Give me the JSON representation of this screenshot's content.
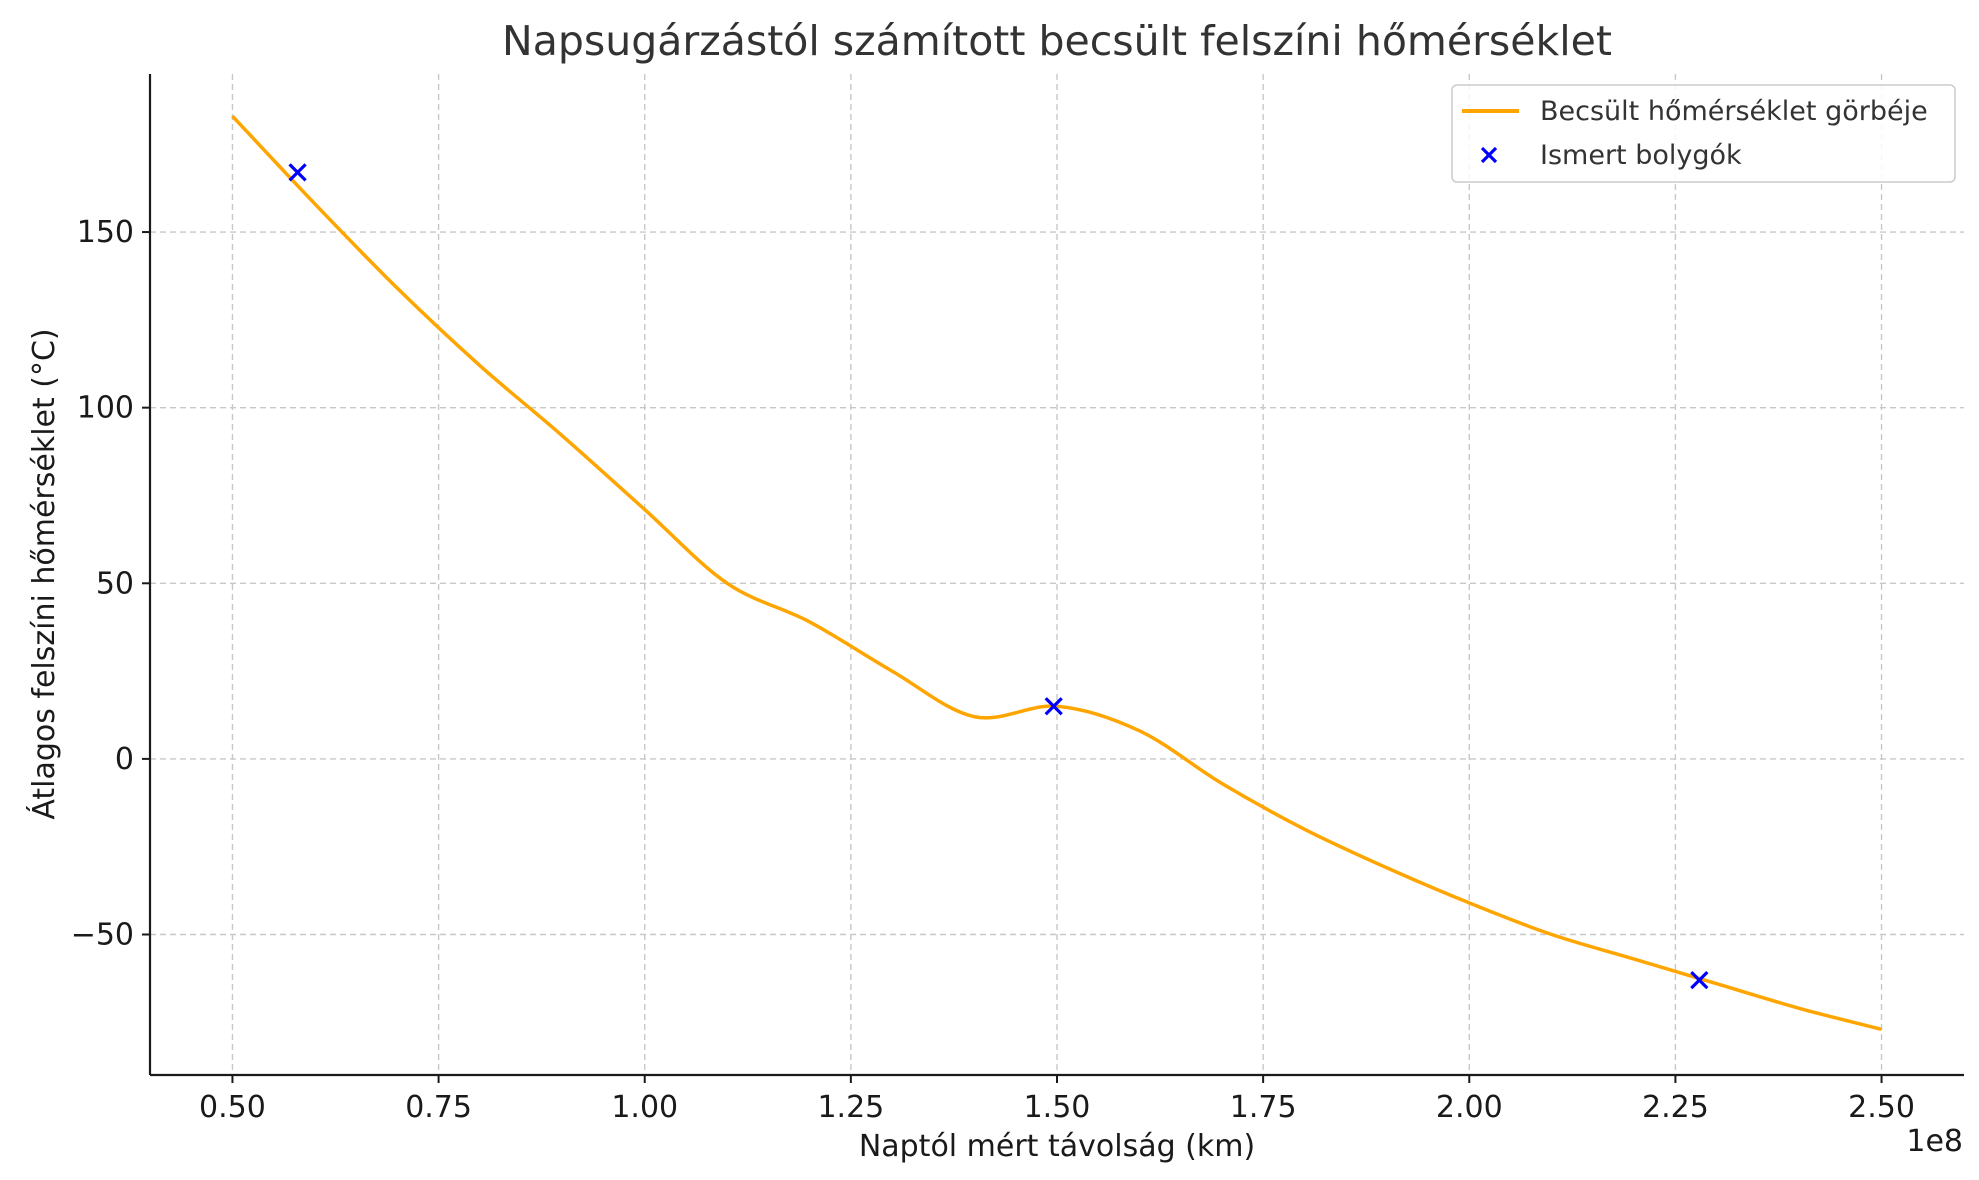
{
  "chart_data": {
    "type": "line",
    "title": "Napsugárzástól számított becsült felszíni hőmérséklet",
    "xlabel": "Naptól mért távolság (km)",
    "ylabel": "Átlagos felszíni hőmérséklet (°C)",
    "x_offset_text": "1e8",
    "xlim": [
      0.4,
      2.6
    ],
    "ylim": [
      -90,
      195
    ],
    "x_ticks": [
      0.5,
      0.75,
      1.0,
      1.25,
      1.5,
      1.75,
      2.0,
      2.25,
      2.5
    ],
    "x_tick_labels": [
      "0.50",
      "0.75",
      "1.00",
      "1.25",
      "1.50",
      "1.75",
      "2.00",
      "2.25",
      "2.50"
    ],
    "y_ticks": [
      -50,
      0,
      50,
      100,
      150
    ],
    "y_tick_labels": [
      "−50",
      "0",
      "50",
      "100",
      "150"
    ],
    "grid": true,
    "legend_position": "top-right",
    "series": [
      {
        "name": "Becsült hőmérséklet görbéje",
        "type": "line",
        "color": "#FFA500",
        "x": [
          0.5,
          0.6,
          0.7,
          0.8,
          0.9,
          1.0,
          1.1,
          1.2,
          1.3,
          1.4,
          1.5,
          1.6,
          1.7,
          1.8,
          1.9,
          2.0,
          2.1,
          2.2,
          2.3,
          2.4,
          2.5
        ],
        "y": [
          183,
          158,
          134,
          112,
          92,
          71,
          50,
          39,
          25,
          12,
          15,
          8,
          -7,
          -20,
          -31,
          -41,
          -50,
          -57,
          -64,
          -71,
          -77
        ]
      },
      {
        "name": "Ismert bolygók",
        "type": "scatter",
        "marker": "x",
        "color": "#0000FF",
        "x": [
          0.579,
          1.496,
          2.279
        ],
        "y": [
          167,
          15,
          -63
        ]
      }
    ]
  }
}
